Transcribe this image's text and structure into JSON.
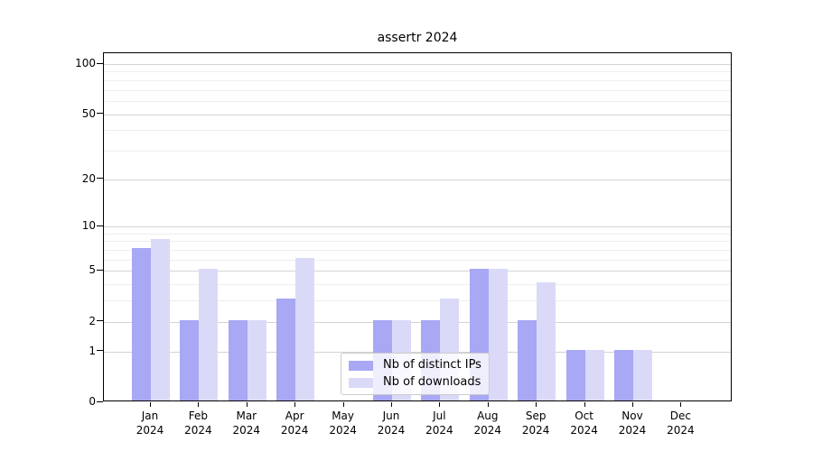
{
  "chart_data": {
    "type": "bar",
    "title": "assertr 2024",
    "x_categories": [
      "Jan",
      "Feb",
      "Mar",
      "Apr",
      "May",
      "Jun",
      "Jul",
      "Aug",
      "Sep",
      "Oct",
      "Nov",
      "Dec"
    ],
    "x_year": "2024",
    "series": [
      {
        "name": "Nb of distinct IPs",
        "color": "#a8a8f4",
        "values": [
          7,
          2,
          2,
          3,
          0,
          2,
          2,
          5,
          2,
          1,
          1,
          0
        ]
      },
      {
        "name": "Nb of downloads",
        "color": "#dadaf8",
        "values": [
          8,
          5,
          2,
          6,
          0,
          2,
          3,
          5,
          4,
          1,
          1,
          0
        ]
      }
    ],
    "y_scale": "log1p",
    "ylim": [
      0,
      100
    ],
    "y_major_ticks": [
      0,
      1,
      2,
      5,
      10,
      20,
      50,
      100
    ],
    "y_minor_gridlines": [
      3,
      4,
      6,
      7,
      8,
      9,
      30,
      40,
      60,
      70,
      80,
      90
    ],
    "grid": true,
    "legend_position": "lower center"
  },
  "colors": {
    "major_grid": "#d4d4d4",
    "minor_grid": "#eeeeee",
    "axis": "#000000",
    "legend_border": "#cccccc",
    "background": "#ffffff"
  }
}
